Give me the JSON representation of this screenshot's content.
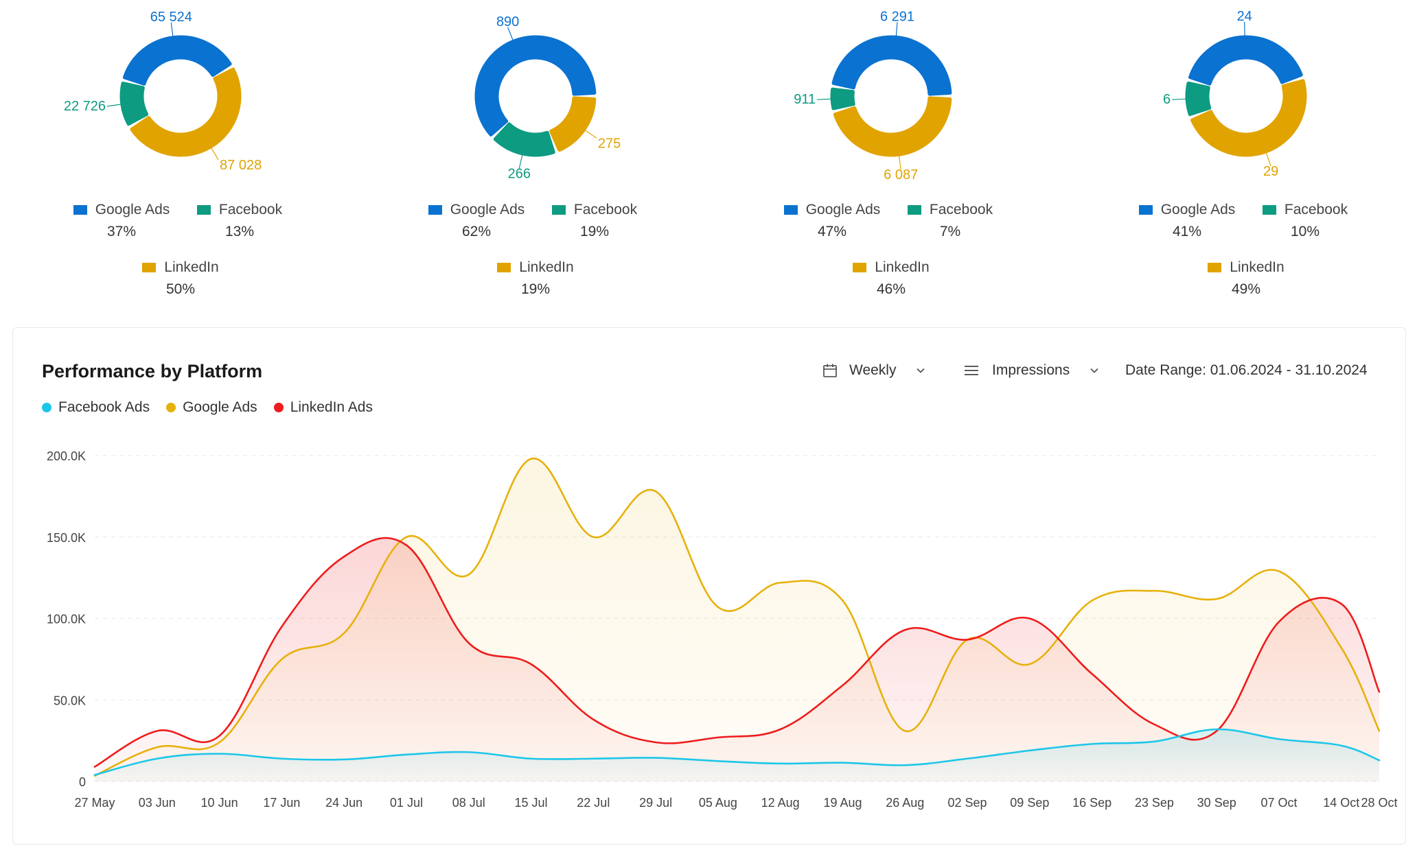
{
  "colors": {
    "google": "#0a72d0",
    "facebook": "#0d9b82",
    "linkedin": "#e0a300",
    "facebook_ads_line": "#1cc6e9",
    "google_ads_line": "#e7b10b",
    "linkedin_ads_line": "#ee1c1c",
    "grid": "#e8e8e8"
  },
  "donut_legend_labels": {
    "google": "Google Ads",
    "facebook": "Facebook",
    "linkedin": "LinkedIn"
  },
  "performance": {
    "title": "Performance by Platform",
    "frequency": {
      "icon": "calendar-icon",
      "value": "Weekly",
      "chevron": "chevron-down-icon"
    },
    "metric": {
      "icon": "menu-lines-icon",
      "value": "Impressions",
      "chevron": "chevron-down-icon"
    },
    "date_range": "Date Range: 01.06.2024 - 31.10.2024"
  },
  "chart_data": [
    {
      "type": "pie",
      "variant": "donut",
      "slices": [
        {
          "name": "Google Ads",
          "value": 65524,
          "label": "65 524",
          "percent": "37%"
        },
        {
          "name": "Facebook",
          "value": 22726,
          "label": "22 726",
          "percent": "13%"
        },
        {
          "name": "LinkedIn",
          "value": 87028,
          "label": "87 028",
          "percent": "50%"
        }
      ]
    },
    {
      "type": "pie",
      "variant": "donut",
      "slices": [
        {
          "name": "Google Ads",
          "value": 890,
          "label": "890",
          "percent": "62%"
        },
        {
          "name": "Facebook",
          "value": 266,
          "label": "266",
          "percent": "19%"
        },
        {
          "name": "LinkedIn",
          "value": 275,
          "label": "275",
          "percent": "19%"
        }
      ]
    },
    {
      "type": "pie",
      "variant": "donut",
      "slices": [
        {
          "name": "Google Ads",
          "value": 6291,
          "label": "6 291",
          "percent": "47%"
        },
        {
          "name": "Facebook",
          "value": 911,
          "label": "911",
          "percent": "7%"
        },
        {
          "name": "LinkedIn",
          "value": 6087,
          "label": "6 087",
          "percent": "46%"
        }
      ]
    },
    {
      "type": "pie",
      "variant": "donut",
      "slices": [
        {
          "name": "Google Ads",
          "value": 24,
          "label": "24",
          "percent": "41%"
        },
        {
          "name": "Facebook",
          "value": 6,
          "label": "6",
          "percent": "10%"
        },
        {
          "name": "LinkedIn",
          "value": 29,
          "label": "29",
          "percent": "49%"
        }
      ]
    },
    {
      "type": "area",
      "title": "Performance by Platform",
      "x": [
        "27 May",
        "03 Jun",
        "10 Jun",
        "17 Jun",
        "24 Jun",
        "01 Jul",
        "08 Jul",
        "15 Jul",
        "22 Jul",
        "29 Jul",
        "05 Aug",
        "12 Aug",
        "19 Aug",
        "26 Aug",
        "02 Sep",
        "09 Sep",
        "16 Sep",
        "23 Sep",
        "30 Sep",
        "07 Oct",
        "14 Oct",
        "28 Oct"
      ],
      "y_ticks": [
        {
          "value": 0,
          "label": "0"
        },
        {
          "value": 50000,
          "label": "50.0K"
        },
        {
          "value": 100000,
          "label": "100.0K"
        },
        {
          "value": 150000,
          "label": "150.0K"
        },
        {
          "value": 200000,
          "label": "200.0K"
        }
      ],
      "ylim": [
        0,
        200000
      ],
      "grid": true,
      "legend_position": "top-left",
      "series": [
        {
          "name": "Facebook Ads",
          "values": [
            4000,
            14000,
            17000,
            14000,
            13500,
            16500,
            18000,
            14000,
            14000,
            14500,
            12500,
            11000,
            11500,
            10000,
            14000,
            19000,
            23000,
            24500,
            32000,
            26000,
            22000,
            13000
          ]
        },
        {
          "name": "Google Ads",
          "values": [
            3500,
            21000,
            24000,
            75000,
            91000,
            150000,
            127000,
            198000,
            150000,
            178000,
            107000,
            122000,
            111000,
            31000,
            87000,
            72000,
            111000,
            117000,
            112000,
            129000,
            82000,
            31000
          ]
        },
        {
          "name": "LinkedIn Ads",
          "values": [
            9000,
            31000,
            28000,
            95000,
            138000,
            145000,
            85000,
            72000,
            38000,
            24000,
            27000,
            32000,
            59000,
            93000,
            87000,
            100000,
            66000,
            35000,
            31000,
            98000,
            109000,
            55000
          ]
        }
      ]
    }
  ]
}
